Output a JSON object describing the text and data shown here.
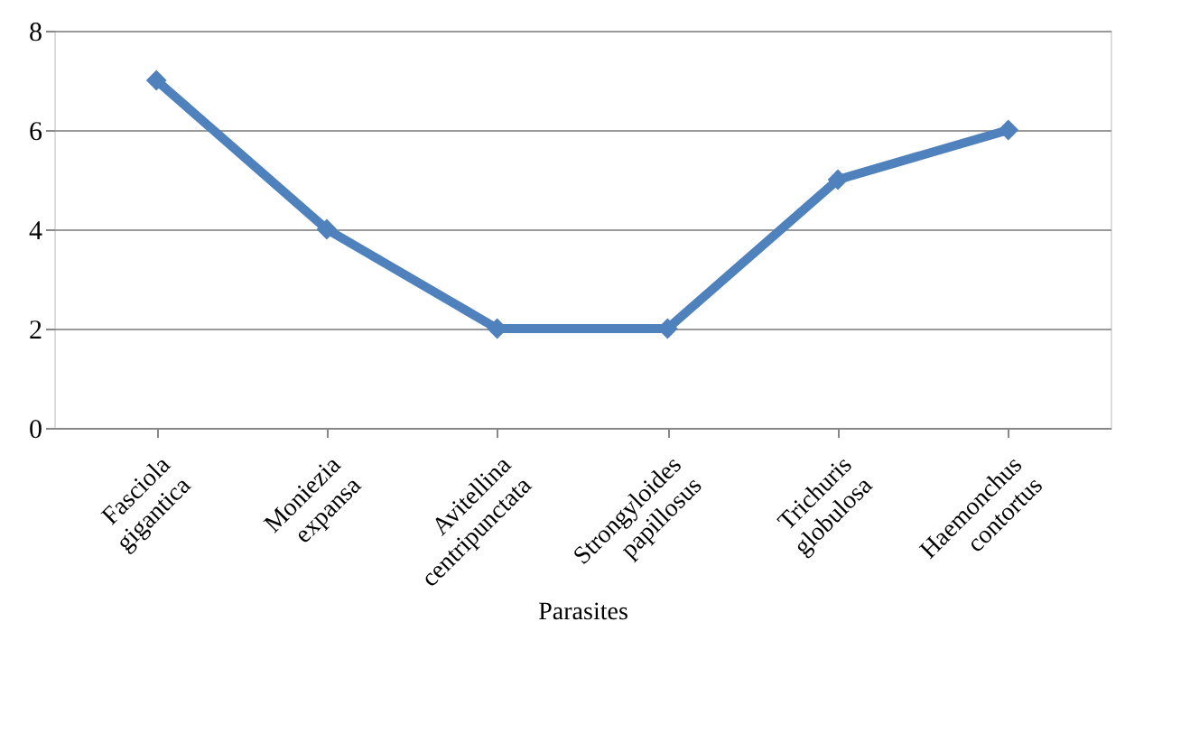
{
  "chart_data": {
    "type": "line",
    "xlabel": "Parasites",
    "categories": [
      "Fasciola gigantica",
      "Moniezia expansa",
      "Avitellina centripunctata",
      "Strongyloides papillosus",
      "Trichuris globulosa",
      "Haemonchus contortus"
    ],
    "series": [
      {
        "color": "#4f81bd",
        "values": [
          7,
          4,
          2,
          2,
          5,
          6
        ]
      }
    ],
    "ylim": [
      0,
      8
    ],
    "yticks": [
      0,
      2,
      4,
      6,
      8
    ],
    "grid": "y",
    "marker": "diamond",
    "line_style": "solid"
  }
}
